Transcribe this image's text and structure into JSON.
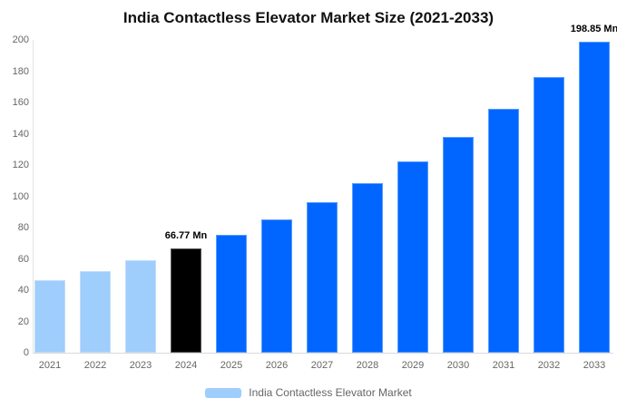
{
  "title": "India Contactless Elevator Market Size (2021-2033)",
  "legend": {
    "label": "India Contactless Elevator Market"
  },
  "chart_data": {
    "type": "bar",
    "title": "India Contactless Elevator Market Size (2021-2033)",
    "xlabel": "",
    "ylabel": "",
    "categories": [
      "2021",
      "2022",
      "2023",
      "2024",
      "2025",
      "2026",
      "2027",
      "2028",
      "2029",
      "2030",
      "2031",
      "2032",
      "2033"
    ],
    "values": [
      46.4,
      52.35,
      59.1,
      66.77,
      75.38,
      85.1,
      96.08,
      108.46,
      122.45,
      138.24,
      156.06,
      176.18,
      198.85
    ],
    "series": [
      {
        "name": "India Contactless Elevator Market",
        "values": [
          46.4,
          52.35,
          59.1,
          66.77,
          75.38,
          85.1,
          96.08,
          108.46,
          122.45,
          138.24,
          156.06,
          176.18,
          198.85
        ]
      }
    ],
    "data_labels": [
      "",
      "",
      "",
      "66.77 Mn",
      "",
      "",
      "",
      "",
      "",
      "",
      "",
      "",
      "198.85 Mn"
    ],
    "bar_roles": [
      "past",
      "past",
      "past",
      "current",
      "forecast",
      "forecast",
      "forecast",
      "forecast",
      "forecast",
      "forecast",
      "forecast",
      "forecast",
      "forecast"
    ],
    "colors": {
      "past": "#9fcdfc",
      "current": "#000000",
      "forecast": "#0066ff"
    },
    "ylim": [
      0,
      200
    ],
    "yticks": [
      0,
      20,
      40,
      60,
      80,
      100,
      120,
      140,
      160,
      180,
      200
    ],
    "grid": false,
    "legend_position": "bottom"
  }
}
